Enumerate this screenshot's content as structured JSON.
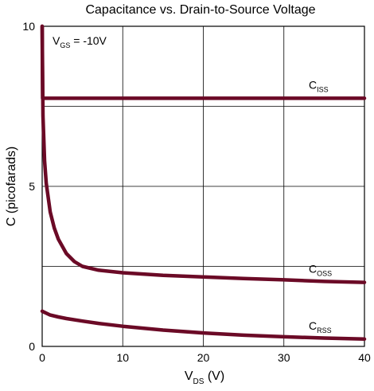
{
  "chart_data": {
    "type": "line",
    "title": "Capacitance vs. Drain-to-Source Voltage",
    "xlabel": {
      "main": "V",
      "sub": "DS",
      "unit": " (V)"
    },
    "ylabel": "C (picofarads)",
    "xlim": [
      0,
      40
    ],
    "ylim": [
      0,
      10
    ],
    "x_ticks": [
      "0",
      "10",
      "20",
      "30",
      "40"
    ],
    "y_ticks": [
      "0",
      "5",
      "10"
    ],
    "grid": true,
    "annotation": {
      "main": "V",
      "sub": "GS",
      "rest": " = -10V"
    },
    "reference_lines": [
      7.5,
      2.5
    ],
    "series_color": "#6b0a26",
    "series": [
      {
        "name": "CISS",
        "label_main": "C",
        "label_sub": "ISS",
        "x": [
          0,
          0.05,
          0.15,
          0.3,
          0.6,
          1,
          2,
          5,
          10,
          20,
          30,
          40
        ],
        "y": [
          10,
          7.75,
          7.75,
          7.75,
          7.75,
          7.75,
          7.75,
          7.75,
          7.75,
          7.75,
          7.75,
          7.75
        ]
      },
      {
        "name": "COSS",
        "label_main": "C",
        "label_sub": "OSS",
        "x": [
          0,
          0.1,
          0.3,
          0.5,
          1,
          1.5,
          2,
          3,
          4,
          5,
          7,
          10,
          15,
          20,
          25,
          30,
          35,
          40
        ],
        "y": [
          10,
          7.2,
          5.8,
          5.1,
          4.2,
          3.7,
          3.35,
          2.9,
          2.65,
          2.5,
          2.38,
          2.3,
          2.22,
          2.17,
          2.12,
          2.08,
          2.03,
          2.0
        ]
      },
      {
        "name": "CRSS",
        "label_main": "C",
        "label_sub": "RSS",
        "x": [
          0,
          1,
          2,
          3,
          5,
          7,
          10,
          15,
          20,
          25,
          30,
          35,
          40
        ],
        "y": [
          1.1,
          0.98,
          0.92,
          0.87,
          0.79,
          0.72,
          0.63,
          0.51,
          0.42,
          0.35,
          0.3,
          0.26,
          0.23
        ]
      }
    ]
  }
}
